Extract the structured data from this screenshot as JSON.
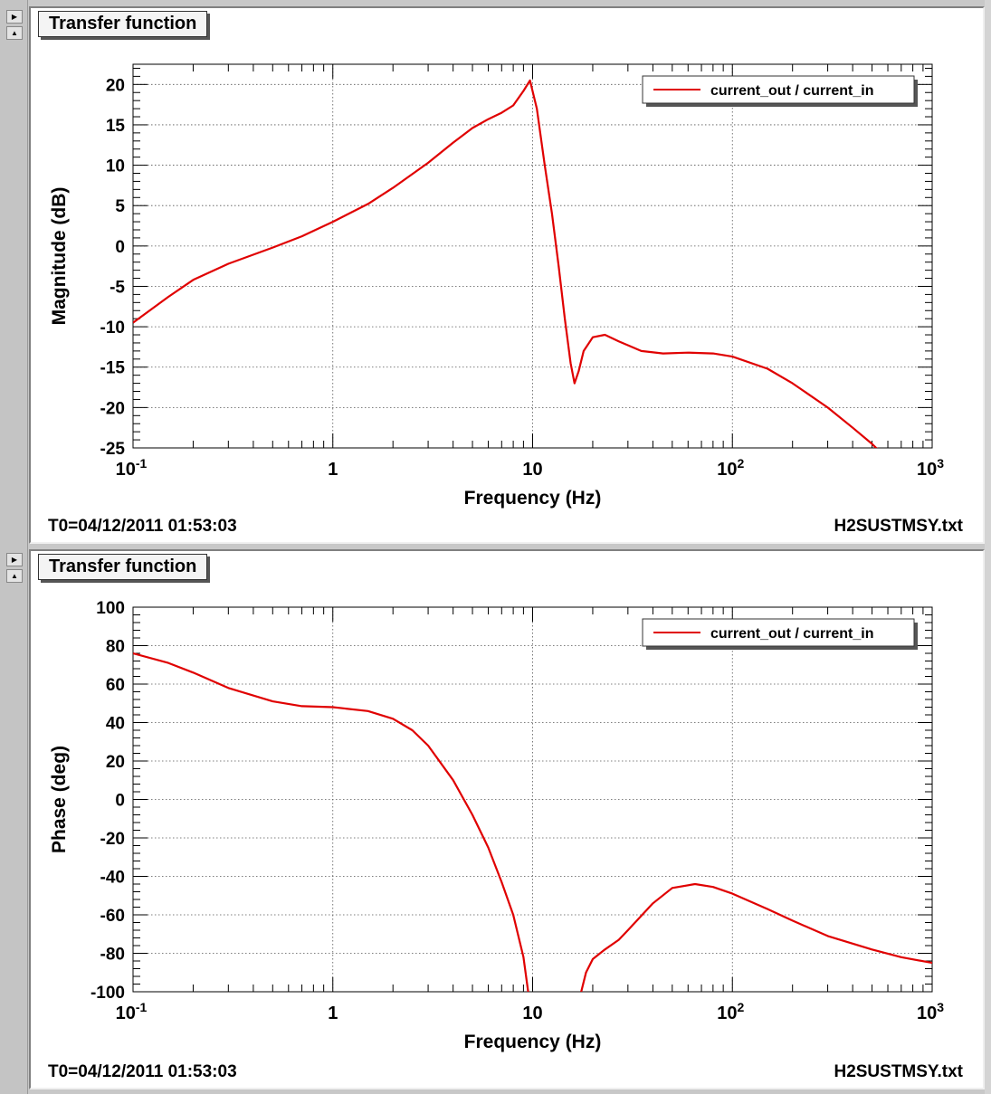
{
  "panels": [
    {
      "title": "Transfer function",
      "footer_left": "T0=04/12/2011 01:53:03",
      "footer_right": "H2SUSTMSY.txt"
    },
    {
      "title": "Transfer function",
      "footer_left": "T0=04/12/2011 01:53:03",
      "footer_right": "H2SUSTMSY.txt"
    }
  ],
  "chart_data": [
    {
      "type": "line",
      "title": "Transfer function",
      "xlabel": "Frequency (Hz)",
      "ylabel": "Magnitude (dB)",
      "xscale": "log",
      "xlim": [
        0.1,
        1000
      ],
      "ylim": [
        -25,
        22.5
      ],
      "grid": true,
      "legend_position": "top-right",
      "x_tick_labels": [
        "10^-1",
        "1",
        "10",
        "10^2",
        "10^3"
      ],
      "y_ticks": [
        20,
        15,
        10,
        5,
        0,
        -5,
        -10,
        -15,
        -20,
        -25
      ],
      "color": "#e00000",
      "series": [
        {
          "name": "current_out / current_in",
          "x": [
            0.1,
            0.15,
            0.2,
            0.3,
            0.5,
            0.7,
            1,
            1.5,
            2,
            3,
            4,
            5,
            6,
            7,
            8,
            9,
            9.7,
            10.5,
            11.5,
            12.5,
            13.5,
            14.5,
            15.5,
            16.2,
            17,
            18,
            20,
            23,
            27,
            35,
            45,
            60,
            80,
            100,
            150,
            200,
            300,
            400,
            500,
            550
          ],
          "values": [
            -9.5,
            -6.3,
            -4.2,
            -2.2,
            -0.2,
            1.2,
            3.0,
            5.2,
            7.2,
            10.3,
            12.8,
            14.6,
            15.7,
            16.5,
            17.4,
            19.2,
            20.5,
            17.0,
            10.0,
            4.0,
            -2.5,
            -9.0,
            -14.5,
            -17.0,
            -15.5,
            -13.0,
            -11.3,
            -11.0,
            -11.8,
            -13.0,
            -13.3,
            -13.2,
            -13.3,
            -13.7,
            -15.2,
            -17.0,
            -20.0,
            -22.5,
            -24.5,
            -25.5
          ]
        }
      ]
    },
    {
      "type": "line",
      "title": "Transfer function",
      "xlabel": "Frequency (Hz)",
      "ylabel": "Phase (deg)",
      "xscale": "log",
      "xlim": [
        0.1,
        1000
      ],
      "ylim": [
        -100,
        100
      ],
      "grid": true,
      "legend_position": "top-right",
      "x_tick_labels": [
        "10^-1",
        "1",
        "10",
        "10^2",
        "10^3"
      ],
      "y_ticks": [
        100,
        80,
        60,
        40,
        20,
        0,
        -20,
        -40,
        -60,
        -80,
        -100
      ],
      "color": "#e00000",
      "series": [
        {
          "name": "current_out / current_in",
          "segments": [
            {
              "x": [
                0.1,
                0.15,
                0.2,
                0.3,
                0.5,
                0.7,
                1,
                1.5,
                2,
                2.5,
                3,
                4,
                5,
                6,
                7,
                8,
                9,
                9.5
              ],
              "values": [
                76,
                71,
                66,
                58,
                51,
                48.5,
                48,
                46,
                42,
                36,
                28,
                10,
                -8,
                -25,
                -43,
                -60,
                -82,
                -100
              ]
            },
            {
              "x": [
                17.5,
                18.5,
                20,
                23,
                27,
                30,
                40,
                50,
                65,
                80,
                100,
                150,
                200,
                300,
                500,
                700,
                1000
              ],
              "values": [
                -100,
                -90,
                -83,
                -78,
                -73,
                -68,
                -54,
                -46,
                -44,
                -45.5,
                -49,
                -57,
                -63,
                -71,
                -78,
                -82,
                -85
              ]
            }
          ]
        }
      ]
    }
  ]
}
